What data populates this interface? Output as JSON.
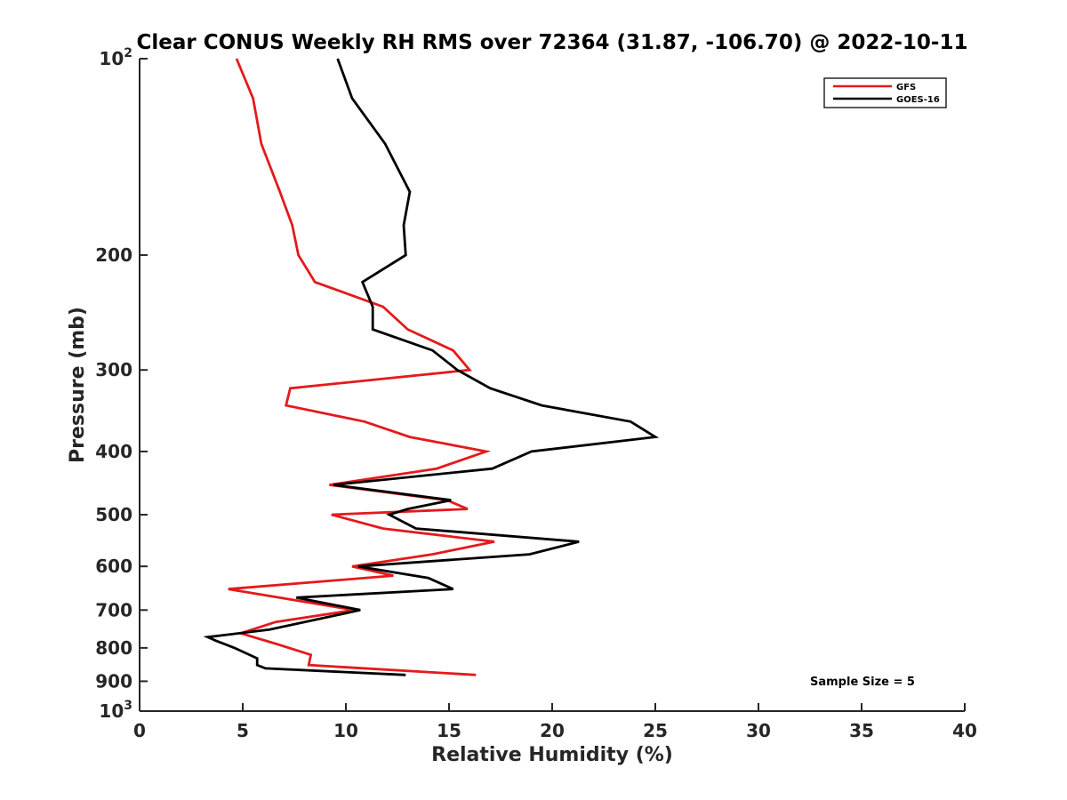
{
  "chart_data": {
    "type": "line",
    "title": "Clear CONUS Weekly RH RMS over 72364 (31.87, -106.70) @ 2022-10-11",
    "xlabel": "Relative Humidity (%)",
    "ylabel": "Pressure (mb)",
    "xlim": [
      0,
      40
    ],
    "ylim": [
      100,
      1000
    ],
    "yscale": "log",
    "y_reversed": true,
    "grid": false,
    "legend_position": "top-right",
    "x_ticks": [
      0,
      5,
      10,
      15,
      20,
      25,
      30,
      35,
      40
    ],
    "y_ticks": [
      {
        "value": 100,
        "label": "10",
        "exp": "2"
      },
      {
        "value": 200,
        "label": "200"
      },
      {
        "value": 300,
        "label": "300"
      },
      {
        "value": 400,
        "label": "400"
      },
      {
        "value": 500,
        "label": "500"
      },
      {
        "value": 600,
        "label": "600"
      },
      {
        "value": 700,
        "label": "700"
      },
      {
        "value": 800,
        "label": "800"
      },
      {
        "value": 900,
        "label": "900"
      },
      {
        "value": 1000,
        "label": "10",
        "exp": "3"
      }
    ],
    "annotation": "Sample Size = 5",
    "series": [
      {
        "name": "GFS",
        "color": "#e41a1c",
        "points": [
          [
            4.7,
            100
          ],
          [
            5.5,
            115
          ],
          [
            5.9,
            135
          ],
          [
            6.8,
            160
          ],
          [
            7.4,
            180
          ],
          [
            7.7,
            200
          ],
          [
            8.5,
            220
          ],
          [
            11.8,
            240
          ],
          [
            13.0,
            260
          ],
          [
            15.2,
            280
          ],
          [
            16.0,
            300
          ],
          [
            7.3,
            320
          ],
          [
            7.1,
            340
          ],
          [
            10.9,
            360
          ],
          [
            13.1,
            380
          ],
          [
            16.8,
            400
          ],
          [
            14.4,
            425
          ],
          [
            9.2,
            450
          ],
          [
            14.9,
            475
          ],
          [
            15.9,
            490
          ],
          [
            9.3,
            500
          ],
          [
            11.8,
            525
          ],
          [
            17.2,
            550
          ],
          [
            14.2,
            575
          ],
          [
            10.3,
            600
          ],
          [
            12.3,
            620
          ],
          [
            4.3,
            650
          ],
          [
            10.4,
            700
          ],
          [
            6.6,
            730
          ],
          [
            4.9,
            760
          ],
          [
            6.7,
            790
          ],
          [
            8.3,
            820
          ],
          [
            8.2,
            850
          ],
          [
            16.3,
            880
          ]
        ]
      },
      {
        "name": "GOES-16",
        "color": "#000000",
        "points": [
          [
            9.6,
            100
          ],
          [
            10.3,
            115
          ],
          [
            11.9,
            135
          ],
          [
            13.1,
            160
          ],
          [
            12.8,
            180
          ],
          [
            12.9,
            200
          ],
          [
            10.8,
            220
          ],
          [
            11.3,
            240
          ],
          [
            11.3,
            260
          ],
          [
            14.2,
            280
          ],
          [
            15.4,
            300
          ],
          [
            17.0,
            320
          ],
          [
            19.5,
            340
          ],
          [
            23.8,
            360
          ],
          [
            25.0,
            380
          ],
          [
            19.0,
            400
          ],
          [
            17.1,
            425
          ],
          [
            9.4,
            450
          ],
          [
            15.1,
            475
          ],
          [
            13.0,
            490
          ],
          [
            12.1,
            500
          ],
          [
            13.4,
            525
          ],
          [
            21.3,
            550
          ],
          [
            18.9,
            575
          ],
          [
            10.6,
            600
          ],
          [
            14.0,
            625
          ],
          [
            15.2,
            650
          ],
          [
            7.6,
            670
          ],
          [
            10.7,
            700
          ],
          [
            6.3,
            750
          ],
          [
            3.3,
            770
          ],
          [
            3.7,
            780
          ],
          [
            4.6,
            800
          ],
          [
            5.7,
            830
          ],
          [
            5.7,
            850
          ],
          [
            6.1,
            860
          ],
          [
            12.9,
            880
          ]
        ]
      }
    ]
  }
}
